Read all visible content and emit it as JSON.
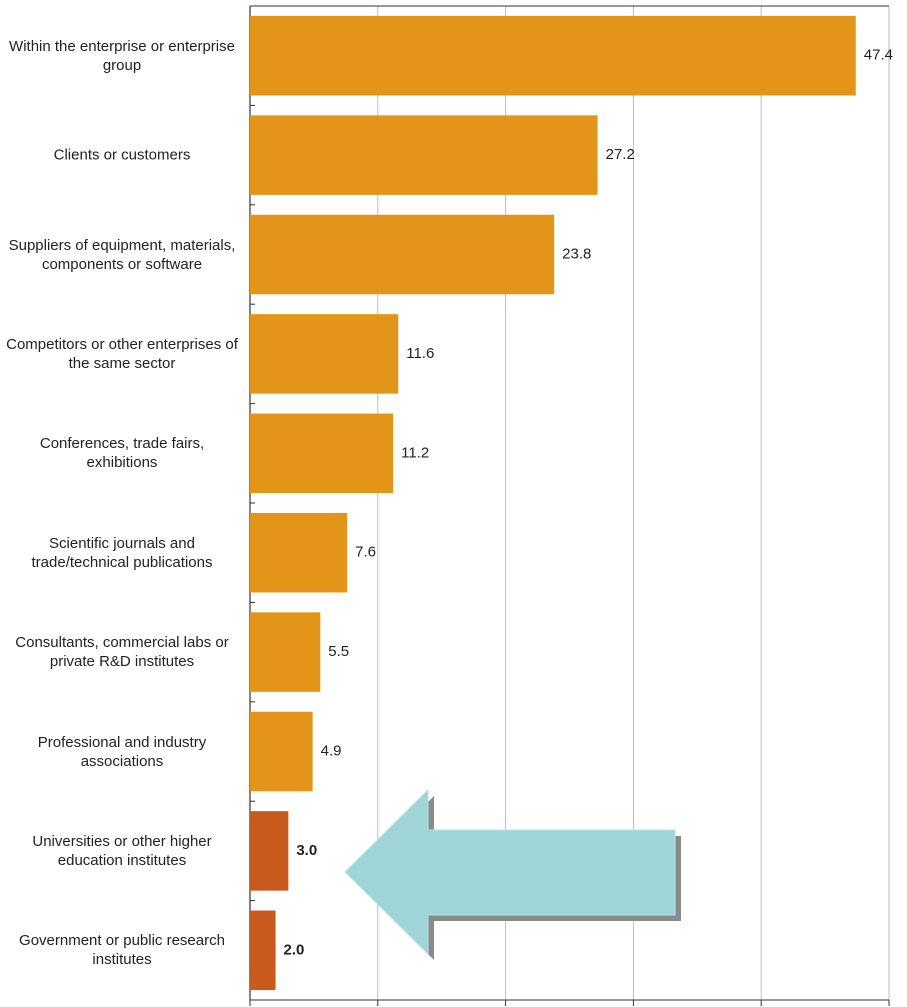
{
  "chart_data": {
    "type": "barh",
    "categories": [
      "Within the enterprise or enterprise group",
      "Clients or customers",
      "Suppliers of equipment, materials, components or software",
      "Competitors or other enterprises of the same sector",
      "Conferences, trade fairs, exhibitions",
      "Scientific journals and trade/technical publications",
      "Consultants, commercial labs or private R&D institutes",
      "Professional and industry associations",
      "Universities or other higher education institutes",
      "Government or public research institutes"
    ],
    "values": [
      47.4,
      27.2,
      23.8,
      11.6,
      11.2,
      7.6,
      5.5,
      4.9,
      3.0,
      2.0
    ],
    "value_labels": [
      "47.4",
      "27.2",
      "23.8",
      "11.6",
      "11.2",
      "7.6",
      "5.5",
      "4.9",
      "3.0",
      "2.0"
    ],
    "colors": [
      "#e3951a",
      "#e3951a",
      "#e3951a",
      "#e3951a",
      "#e3951a",
      "#e3951a",
      "#e3951a",
      "#e3951a",
      "#c95a1e",
      "#c95a1e"
    ],
    "xlim": [
      0,
      50
    ],
    "xticks": [
      0,
      10,
      20,
      30,
      40,
      50
    ],
    "grid": true
  }
}
